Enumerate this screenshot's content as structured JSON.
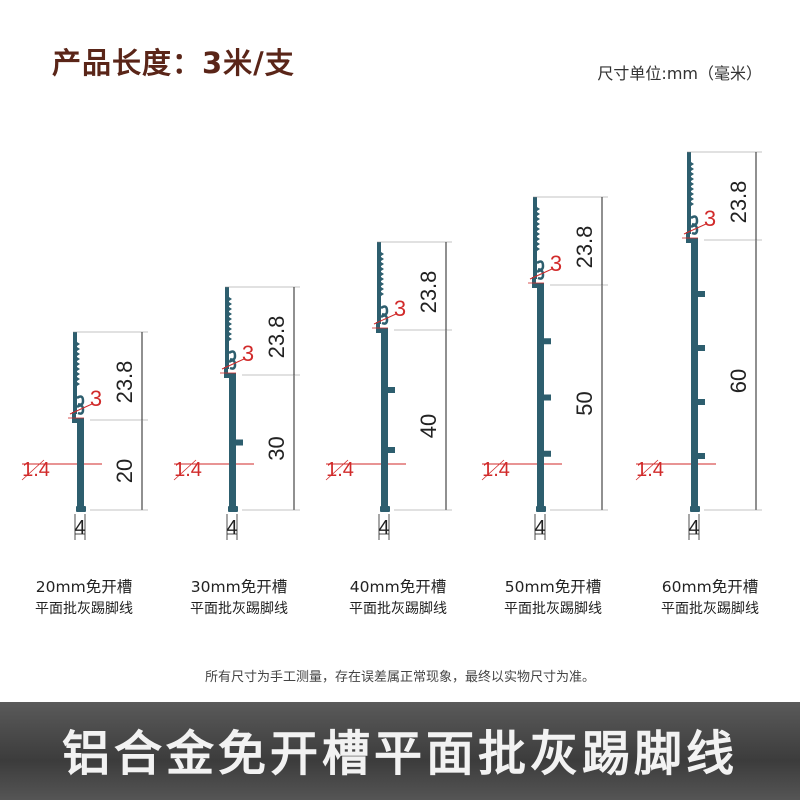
{
  "header": {
    "title": "产品长度：3米/支",
    "units_note": "尺寸单位:mm（毫米）"
  },
  "colors": {
    "profile": "#2d5e6e",
    "dimension_black": "#222222",
    "dimension_red": "#d12a2a",
    "title": "#5a2518"
  },
  "profiles": [
    {
      "height": "20",
      "top_height": "23.8",
      "gap": "3",
      "thickness": "1.4",
      "width": "4",
      "ribs": 0,
      "caption_line1": "20mm免开槽",
      "caption_line2": "平面批灰踢脚线"
    },
    {
      "height": "30",
      "top_height": "23.8",
      "gap": "3",
      "thickness": "1.4",
      "width": "4",
      "ribs": 1,
      "caption_line1": "30mm免开槽",
      "caption_line2": "平面批灰踢脚线"
    },
    {
      "height": "40",
      "top_height": "23.8",
      "gap": "3",
      "thickness": "1.4",
      "width": "4",
      "ribs": 2,
      "caption_line1": "40mm免开槽",
      "caption_line2": "平面批灰踢脚线"
    },
    {
      "height": "50",
      "top_height": "23.8",
      "gap": "3",
      "thickness": "1.4",
      "width": "4",
      "ribs": 3,
      "caption_line1": "50mm免开槽",
      "caption_line2": "平面批灰踢脚线"
    },
    {
      "height": "60",
      "top_height": "23.8",
      "gap": "3",
      "thickness": "1.4",
      "width": "4",
      "ribs": 4,
      "caption_line1": "60mm免开槽",
      "caption_line2": "平面批灰踢脚线"
    }
  ],
  "footer": {
    "disclaimer": "所有尺寸为手工测量，存在误差属正常现象，最终以实物尺寸为准。",
    "banner_title": "铝合金免开槽平面批灰踢脚线"
  }
}
